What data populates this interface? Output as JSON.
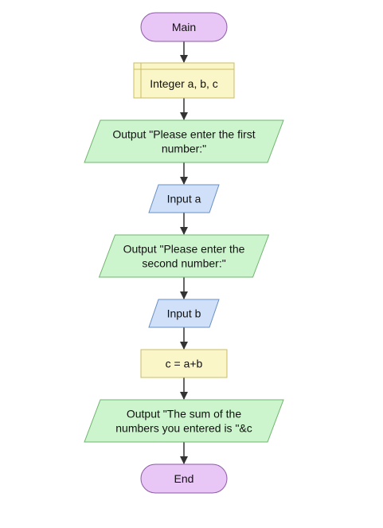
{
  "flowchart": {
    "colors": {
      "terminal_fill": "#e8c6f5",
      "terminal_stroke": "#8e5aa6",
      "declare_fill": "#fbf6c8",
      "declare_stroke": "#c8bc64",
      "output_fill": "#cdf5cd",
      "output_stroke": "#6fb46f",
      "input_fill": "#cfe0f8",
      "input_stroke": "#6a8fc4",
      "process_fill": "#fbf6c8",
      "process_stroke": "#c8bc64",
      "arrow": "#333333"
    },
    "nodes": [
      {
        "id": "main",
        "type": "terminal",
        "lines": [
          "Main"
        ]
      },
      {
        "id": "declare",
        "type": "declare",
        "lines": [
          "Integer a, b, c"
        ]
      },
      {
        "id": "output1",
        "type": "output",
        "lines": [
          "Output \"Please enter the first",
          "number:\""
        ]
      },
      {
        "id": "input_a",
        "type": "input",
        "lines": [
          "Input a"
        ]
      },
      {
        "id": "output2",
        "type": "output",
        "lines": [
          "Output \"Please enter the",
          "second number:\""
        ]
      },
      {
        "id": "input_b",
        "type": "input",
        "lines": [
          "Input b"
        ]
      },
      {
        "id": "assign",
        "type": "process",
        "lines": [
          "c = a+b"
        ]
      },
      {
        "id": "output3",
        "type": "output",
        "lines": [
          "Output \"The sum of the",
          "numbers you entered is \"&c"
        ]
      },
      {
        "id": "end",
        "type": "terminal",
        "lines": [
          "End"
        ]
      }
    ],
    "edges": [
      {
        "from": "main",
        "to": "declare"
      },
      {
        "from": "declare",
        "to": "output1"
      },
      {
        "from": "output1",
        "to": "input_a"
      },
      {
        "from": "input_a",
        "to": "output2"
      },
      {
        "from": "output2",
        "to": "input_b"
      },
      {
        "from": "input_b",
        "to": "assign"
      },
      {
        "from": "assign",
        "to": "output3"
      },
      {
        "from": "output3",
        "to": "end"
      }
    ]
  }
}
